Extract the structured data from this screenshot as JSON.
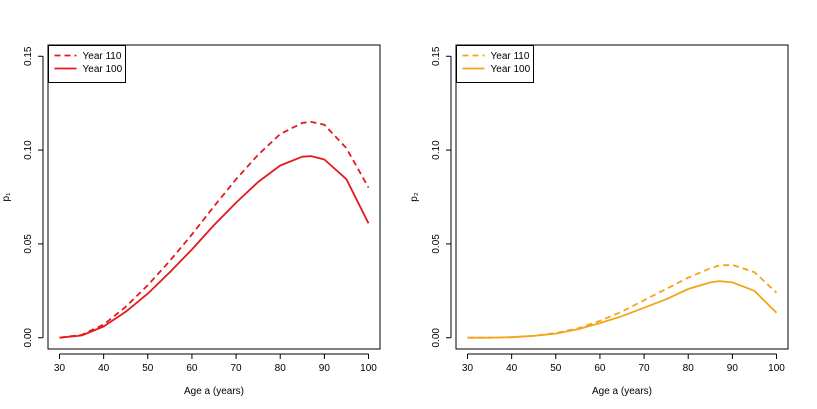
{
  "chart_data": [
    {
      "type": "line",
      "xlabel": "Age a (years)",
      "ylabel": "p₁",
      "xlim": [
        27.4,
        102.6
      ],
      "ylim": [
        -0.006,
        0.156
      ],
      "xticks": [
        30,
        40,
        50,
        60,
        70,
        80,
        90,
        100
      ],
      "xtick_labels": [
        "30",
        "40",
        "50",
        "60",
        "70",
        "80",
        "90",
        "100"
      ],
      "yticks": [
        0,
        0.05,
        0.1,
        0.15
      ],
      "ytick_labels": [
        "0.00",
        "0.05",
        "0.10",
        "0.15"
      ],
      "grid": false,
      "legend_position": "top-left",
      "x": [
        30,
        35,
        40,
        45,
        50,
        55,
        60,
        65,
        70,
        75,
        80,
        85,
        87,
        90,
        95,
        100
      ],
      "series": [
        {
          "name": "Year 110",
          "color": "#e41a1c",
          "dash": "dashed",
          "values": [
            0.0,
            0.0015,
            0.007,
            0.0165,
            0.028,
            0.041,
            0.055,
            0.07,
            0.0845,
            0.0975,
            0.1085,
            0.1145,
            0.115,
            0.1135,
            0.101,
            0.08
          ]
        },
        {
          "name": "Year 100",
          "color": "#e41a1c",
          "dash": "solid",
          "values": [
            0.0,
            0.0012,
            0.006,
            0.0138,
            0.0235,
            0.035,
            0.047,
            0.06,
            0.072,
            0.083,
            0.0918,
            0.0965,
            0.0968,
            0.095,
            0.0845,
            0.061
          ]
        }
      ]
    },
    {
      "type": "line",
      "xlabel": "Age a (years)",
      "ylabel": "p₂",
      "xlim": [
        27.4,
        102.6
      ],
      "ylim": [
        -0.006,
        0.156
      ],
      "xticks": [
        30,
        40,
        50,
        60,
        70,
        80,
        90,
        100
      ],
      "xtick_labels": [
        "30",
        "40",
        "50",
        "60",
        "70",
        "80",
        "90",
        "100"
      ],
      "yticks": [
        0,
        0.05,
        0.1,
        0.15
      ],
      "ytick_labels": [
        "0.00",
        "0.05",
        "0.10",
        "0.15"
      ],
      "grid": false,
      "legend_position": "top-left",
      "x": [
        30,
        35,
        40,
        45,
        50,
        55,
        60,
        65,
        70,
        75,
        80,
        85,
        87,
        90,
        95,
        100
      ],
      "series": [
        {
          "name": "Year 110",
          "color": "#f2a51a",
          "dash": "dashed",
          "values": [
            0.0,
            0.0,
            0.0003,
            0.001,
            0.0025,
            0.005,
            0.009,
            0.014,
            0.02,
            0.026,
            0.032,
            0.037,
            0.0385,
            0.0388,
            0.035,
            0.024
          ]
        },
        {
          "name": "Year 100",
          "color": "#f2a51a",
          "dash": "solid",
          "values": [
            0.0,
            0.0,
            0.0003,
            0.001,
            0.0022,
            0.0045,
            0.0078,
            0.0115,
            0.016,
            0.0205,
            0.026,
            0.0295,
            0.0302,
            0.0295,
            0.025,
            0.0133
          ]
        }
      ]
    }
  ]
}
